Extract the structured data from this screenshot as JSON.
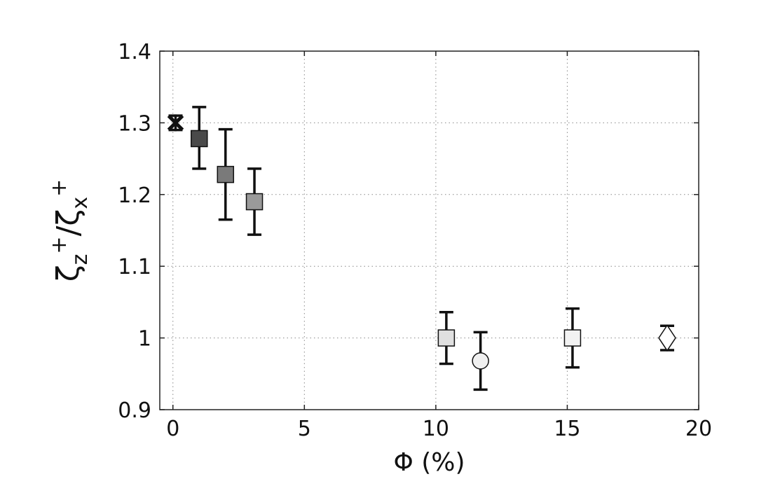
{
  "chart_data": {
    "type": "scatter",
    "xlabel": "Φ (%)",
    "ylabel": "ζ_z⁺/ζ_x⁺",
    "ylabel_parts": {
      "main1": "ζ",
      "sup1": "+",
      "sub1": "z",
      "slash": "/",
      "main2": "ζ",
      "sup2": "+",
      "sub2": "x"
    },
    "xlim": [
      -0.5,
      20
    ],
    "ylim": [
      0.9,
      1.4
    ],
    "x_ticks": [
      0,
      5,
      10,
      15,
      20
    ],
    "x_tick_labels": [
      "0",
      "5",
      "10",
      "15",
      "20"
    ],
    "y_ticks": [
      0.9,
      1.0,
      1.1,
      1.2,
      1.3,
      1.4
    ],
    "y_tick_labels": [
      "0.9",
      "1",
      "1.1",
      "1.2",
      "1.3",
      "1.4"
    ],
    "grid": true,
    "points": [
      {
        "x": 0.1,
        "y": 1.3,
        "err_low": 1.29,
        "err_high": 1.31,
        "marker": "x-star",
        "color": "#111111"
      },
      {
        "x": 1.0,
        "y": 1.278,
        "err_low": 1.236,
        "err_high": 1.322,
        "marker": "square",
        "color": "#4a4a4a"
      },
      {
        "x": 2.0,
        "y": 1.228,
        "err_low": 1.165,
        "err_high": 1.291,
        "marker": "square",
        "color": "#7a7a7a"
      },
      {
        "x": 3.1,
        "y": 1.19,
        "err_low": 1.144,
        "err_high": 1.236,
        "marker": "square",
        "color": "#9a9a9a"
      },
      {
        "x": 10.4,
        "y": 1.0,
        "err_low": 0.964,
        "err_high": 1.036,
        "marker": "square",
        "color": "#e0e0e0"
      },
      {
        "x": 11.7,
        "y": 0.968,
        "err_low": 0.928,
        "err_high": 1.008,
        "marker": "circle",
        "color": "#f0f0f0"
      },
      {
        "x": 15.2,
        "y": 1.0,
        "err_low": 0.959,
        "err_high": 1.041,
        "marker": "square",
        "color": "#f2f2f2"
      },
      {
        "x": 18.8,
        "y": 1.0,
        "err_low": 0.983,
        "err_high": 1.017,
        "marker": "diamond",
        "color": "#ffffff"
      }
    ]
  }
}
